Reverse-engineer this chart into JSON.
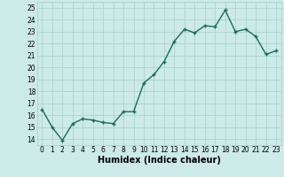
{
  "x": [
    0,
    1,
    2,
    3,
    4,
    5,
    6,
    7,
    8,
    9,
    10,
    11,
    12,
    13,
    14,
    15,
    16,
    17,
    18,
    19,
    20,
    21,
    22,
    23
  ],
  "y": [
    16.5,
    15.0,
    13.9,
    15.3,
    15.7,
    15.6,
    15.4,
    15.3,
    16.3,
    16.3,
    18.7,
    19.4,
    20.5,
    22.2,
    23.2,
    22.9,
    23.5,
    23.4,
    24.8,
    23.0,
    23.2,
    22.6,
    21.1,
    21.4
  ],
  "line_color": "#1a6b5a",
  "marker": "+",
  "marker_size": 3,
  "bg_color": "#cceae8",
  "grid_color": "#add4d1",
  "xlabel": "Humidex (Indice chaleur)",
  "xlim": [
    -0.5,
    23.5
  ],
  "ylim": [
    13.5,
    25.5
  ],
  "yticks": [
    14,
    15,
    16,
    17,
    18,
    19,
    20,
    21,
    22,
    23,
    24,
    25
  ],
  "xticks": [
    0,
    1,
    2,
    3,
    4,
    5,
    6,
    7,
    8,
    9,
    10,
    11,
    12,
    13,
    14,
    15,
    16,
    17,
    18,
    19,
    20,
    21,
    22,
    23
  ],
  "tick_fontsize": 5.5,
  "xlabel_fontsize": 7,
  "line_width": 1.0
}
